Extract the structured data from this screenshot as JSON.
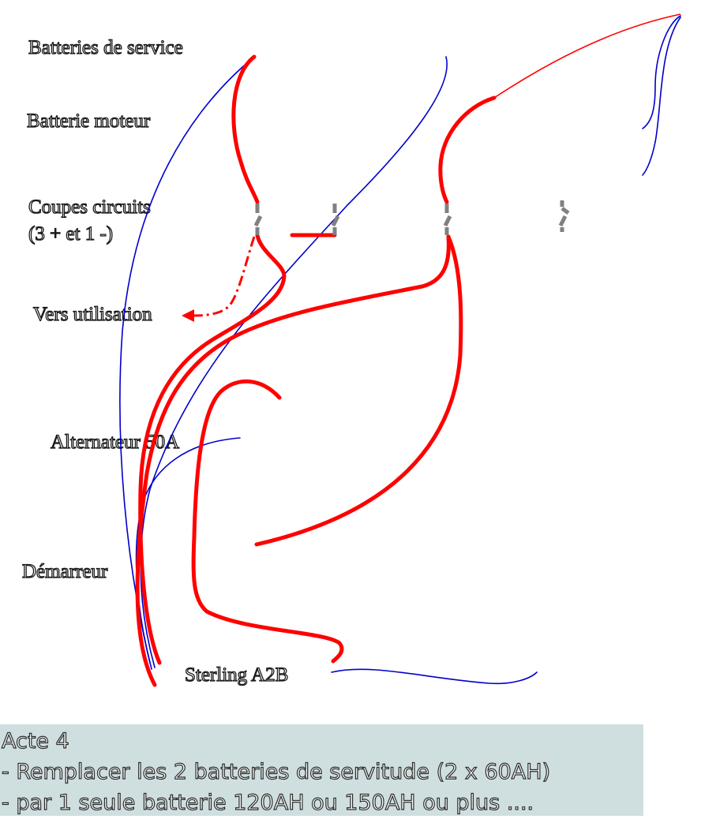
{
  "labels": {
    "service_batteries": "Batteries de service",
    "engine_battery": "Batterie moteur",
    "circuit_breakers_line1": "Coupes circuits",
    "circuit_breakers_line2": "(3 + et 1 -)",
    "to_usage": "Vers utilisation",
    "alternator": "Alternateur 50A",
    "starter": "Démarreur",
    "sterling": "Sterling A2B"
  },
  "caption": {
    "title": "Acte 4",
    "line1": "- Remplacer les 2 batteries de servitude (2 x 60AH)",
    "line2": "- par 1 seule batterie 120AH ou 150AH ou plus ...."
  },
  "colors": {
    "positive_wire": "#ff0000",
    "negative_wire": "#0000cc",
    "switch": "#808080",
    "caption_background": "#cfdfe0"
  }
}
